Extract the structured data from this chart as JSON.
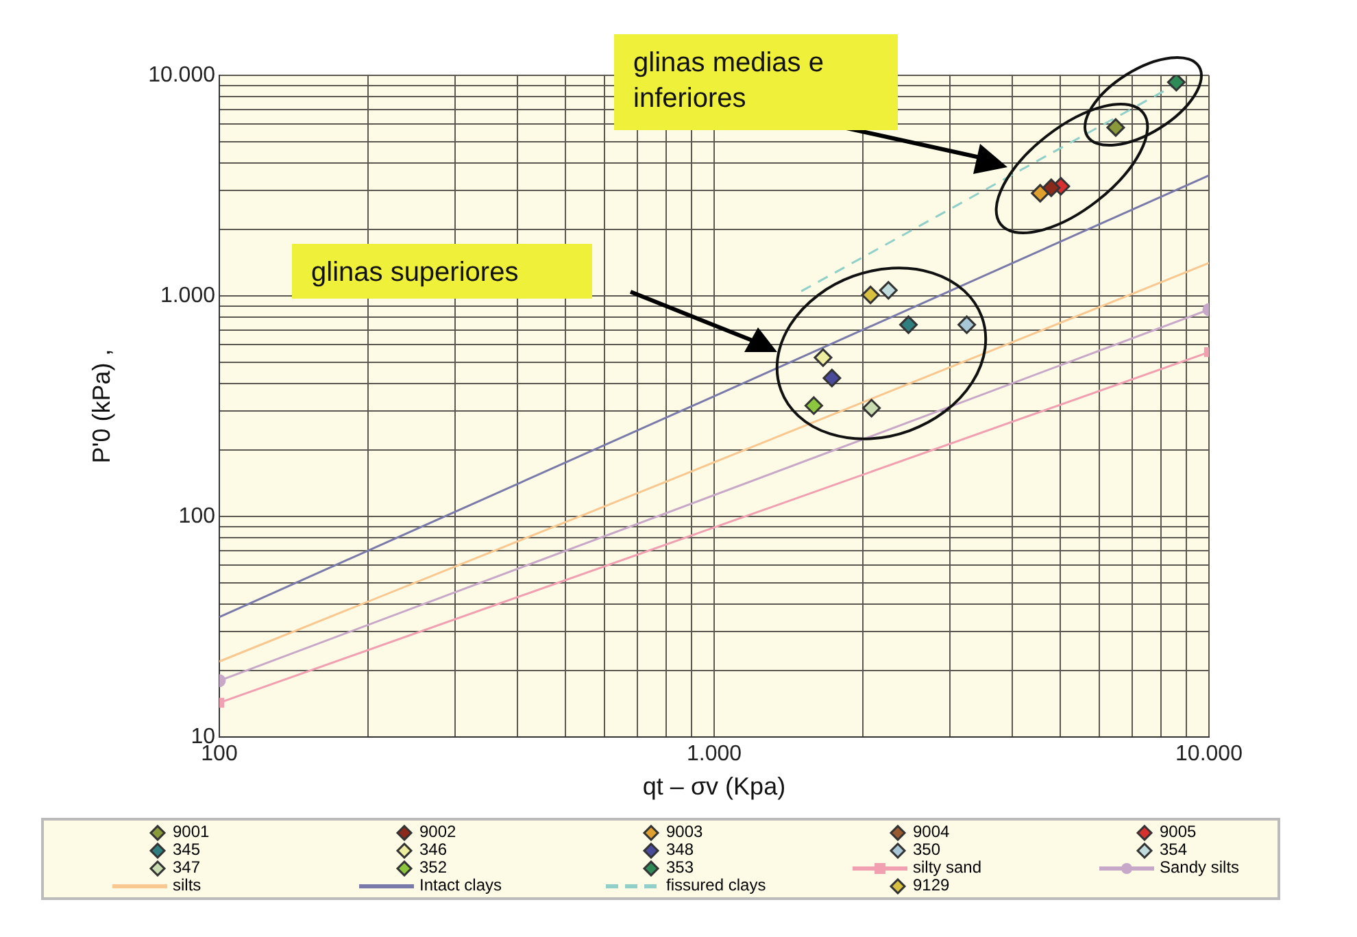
{
  "chart_data": {
    "type": "scatter",
    "xlabel": "qt – σv (Kpa)",
    "ylabel": "P'0 (kPa) ,",
    "log": "xy",
    "grid": true,
    "legend": "bottom",
    "xlim": [
      100,
      10000
    ],
    "ylim": [
      10,
      10000
    ],
    "xticks": [
      100,
      {
        "value": 200,
        "label": null
      },
      {
        "value": 300,
        "label": null
      },
      {
        "value": 400,
        "label": null
      },
      {
        "value": 500,
        "label": null
      },
      {
        "value": 600,
        "label": null
      },
      {
        "value": 700,
        "label": null
      },
      {
        "value": 800,
        "label": null
      },
      {
        "value": 900,
        "label": null
      },
      {
        "value": 1000,
        "label": "1.000"
      },
      {
        "value": 2000,
        "label": null
      },
      {
        "value": 3000,
        "label": null
      },
      {
        "value": 4000,
        "label": null
      },
      {
        "value": 5000,
        "label": null
      },
      {
        "value": 6000,
        "label": null
      },
      {
        "value": 7000,
        "label": null
      },
      {
        "value": 8000,
        "label": null
      },
      {
        "value": 9000,
        "label": null
      },
      {
        "value": 10000,
        "label": "10.000"
      }
    ],
    "yticks": [
      10,
      {
        "value": 20,
        "label": null
      },
      {
        "value": 30,
        "label": null
      },
      {
        "value": 40,
        "label": null
      },
      {
        "value": 50,
        "label": null
      },
      {
        "value": 60,
        "label": null
      },
      {
        "value": 70,
        "label": null
      },
      {
        "value": 80,
        "label": null
      },
      {
        "value": 90,
        "label": null
      },
      100,
      {
        "value": 200,
        "label": null
      },
      {
        "value": 300,
        "label": null
      },
      {
        "value": 400,
        "label": null
      },
      {
        "value": 500,
        "label": null
      },
      {
        "value": 600,
        "label": null
      },
      {
        "value": 700,
        "label": null
      },
      {
        "value": 800,
        "label": null
      },
      {
        "value": 900,
        "label": null
      },
      {
        "value": 1000,
        "label": "1.000"
      },
      {
        "value": 2000,
        "label": null
      },
      {
        "value": 3000,
        "label": null
      },
      {
        "value": 4000,
        "label": null
      },
      {
        "value": 5000,
        "label": null
      },
      {
        "value": 6000,
        "label": null
      },
      {
        "value": 7000,
        "label": null
      },
      {
        "value": 8000,
        "label": null
      },
      {
        "value": 9000,
        "label": null
      },
      {
        "value": 10000,
        "label": "10.000"
      }
    ],
    "annotations": [
      "glinas medias e inferiores",
      "glinas superiores"
    ],
    "series": [
      {
        "name": "9001",
        "marker": "diamond",
        "color": "#8a9a3a",
        "x": [
          6480
        ],
        "values": [
          5800
        ]
      },
      {
        "name": "9002",
        "type": "scatter",
        "marker": "diamond",
        "color": "#8b2a1a",
        "x": [
          4800
        ],
        "values": [
          3090
        ]
      },
      {
        "name": "9003",
        "type": "scatter",
        "marker": "diamond",
        "color": "#e0a030",
        "x": [
          4560
        ],
        "values": [
          2920
        ]
      },
      {
        "name": "9004",
        "type": "scatter",
        "marker": "diamond",
        "color": "#9a5a30"
      },
      {
        "name": "9005",
        "type": "scatter",
        "marker": "diamond",
        "color": "#d83030",
        "x": [
          5020
        ],
        "values": [
          3140
        ]
      },
      {
        "name": "345",
        "type": "scatter",
        "marker": "diamond",
        "color": "#2f7f80",
        "x": [
          2470
        ],
        "values": [
          740
        ]
      },
      {
        "name": "346",
        "type": "scatter",
        "marker": "diamond",
        "color": "#eeeea0",
        "x": [
          1660
        ],
        "values": [
          525
        ]
      },
      {
        "name": "348",
        "type": "scatter",
        "marker": "diamond",
        "color": "#4a4a9a",
        "x": [
          1730
        ],
        "values": [
          424
        ]
      },
      {
        "name": "350",
        "type": "scatter",
        "marker": "diamond",
        "color": "#a8c8d8",
        "x": [
          3240
        ],
        "values": [
          740
        ]
      },
      {
        "name": "354",
        "type": "scatter",
        "marker": "diamond",
        "color": "#c0dcdc",
        "x": [
          2250
        ],
        "values": [
          1060
        ]
      },
      {
        "name": "347",
        "type": "scatter",
        "marker": "diamond",
        "color": "#c8dcb0",
        "x": [
          2080
        ],
        "values": [
          310
        ]
      },
      {
        "name": "352",
        "type": "scatter",
        "marker": "diamond",
        "color": "#8cc63f",
        "x": [
          1590
        ],
        "values": [
          318
        ]
      },
      {
        "name": "353",
        "type": "scatter",
        "marker": "diamond",
        "color": "#2e8b57",
        "x": [
          8590
        ],
        "values": [
          9310
        ]
      },
      {
        "name": "silty sand",
        "type": "line",
        "marker": "square",
        "line_style": "solid",
        "color": "#f0a0b0",
        "x": [
          100,
          10000
        ],
        "values": [
          14.3,
          556
        ]
      },
      {
        "name": "Sandy silts",
        "type": "line",
        "marker": "circle",
        "line_style": "solid",
        "color": "#c8a8c8",
        "x": [
          100,
          10000
        ],
        "values": [
          18,
          867
        ]
      },
      {
        "name": "silts",
        "type": "line",
        "marker": "none",
        "line_style": "solid",
        "color": "#f8c890",
        "x": [
          100,
          10000
        ],
        "values": [
          22,
          1410
        ]
      },
      {
        "name": "Intact clays",
        "type": "line",
        "marker": "none",
        "line_style": "solid",
        "color": "#7a7aaa",
        "x": [
          100,
          10000
        ],
        "values": [
          35,
          3520
        ]
      },
      {
        "name": "fissured clays",
        "type": "line",
        "marker": "none",
        "line_style": "dashed",
        "color": "#90d0c8",
        "x": [
          1500,
          8500
        ],
        "values": [
          1050,
          9000
        ]
      },
      {
        "name": "9129",
        "type": "scatter",
        "marker": "diamond",
        "color": "#d8c040",
        "x": [
          2070
        ],
        "values": [
          1010
        ]
      }
    ]
  }
}
